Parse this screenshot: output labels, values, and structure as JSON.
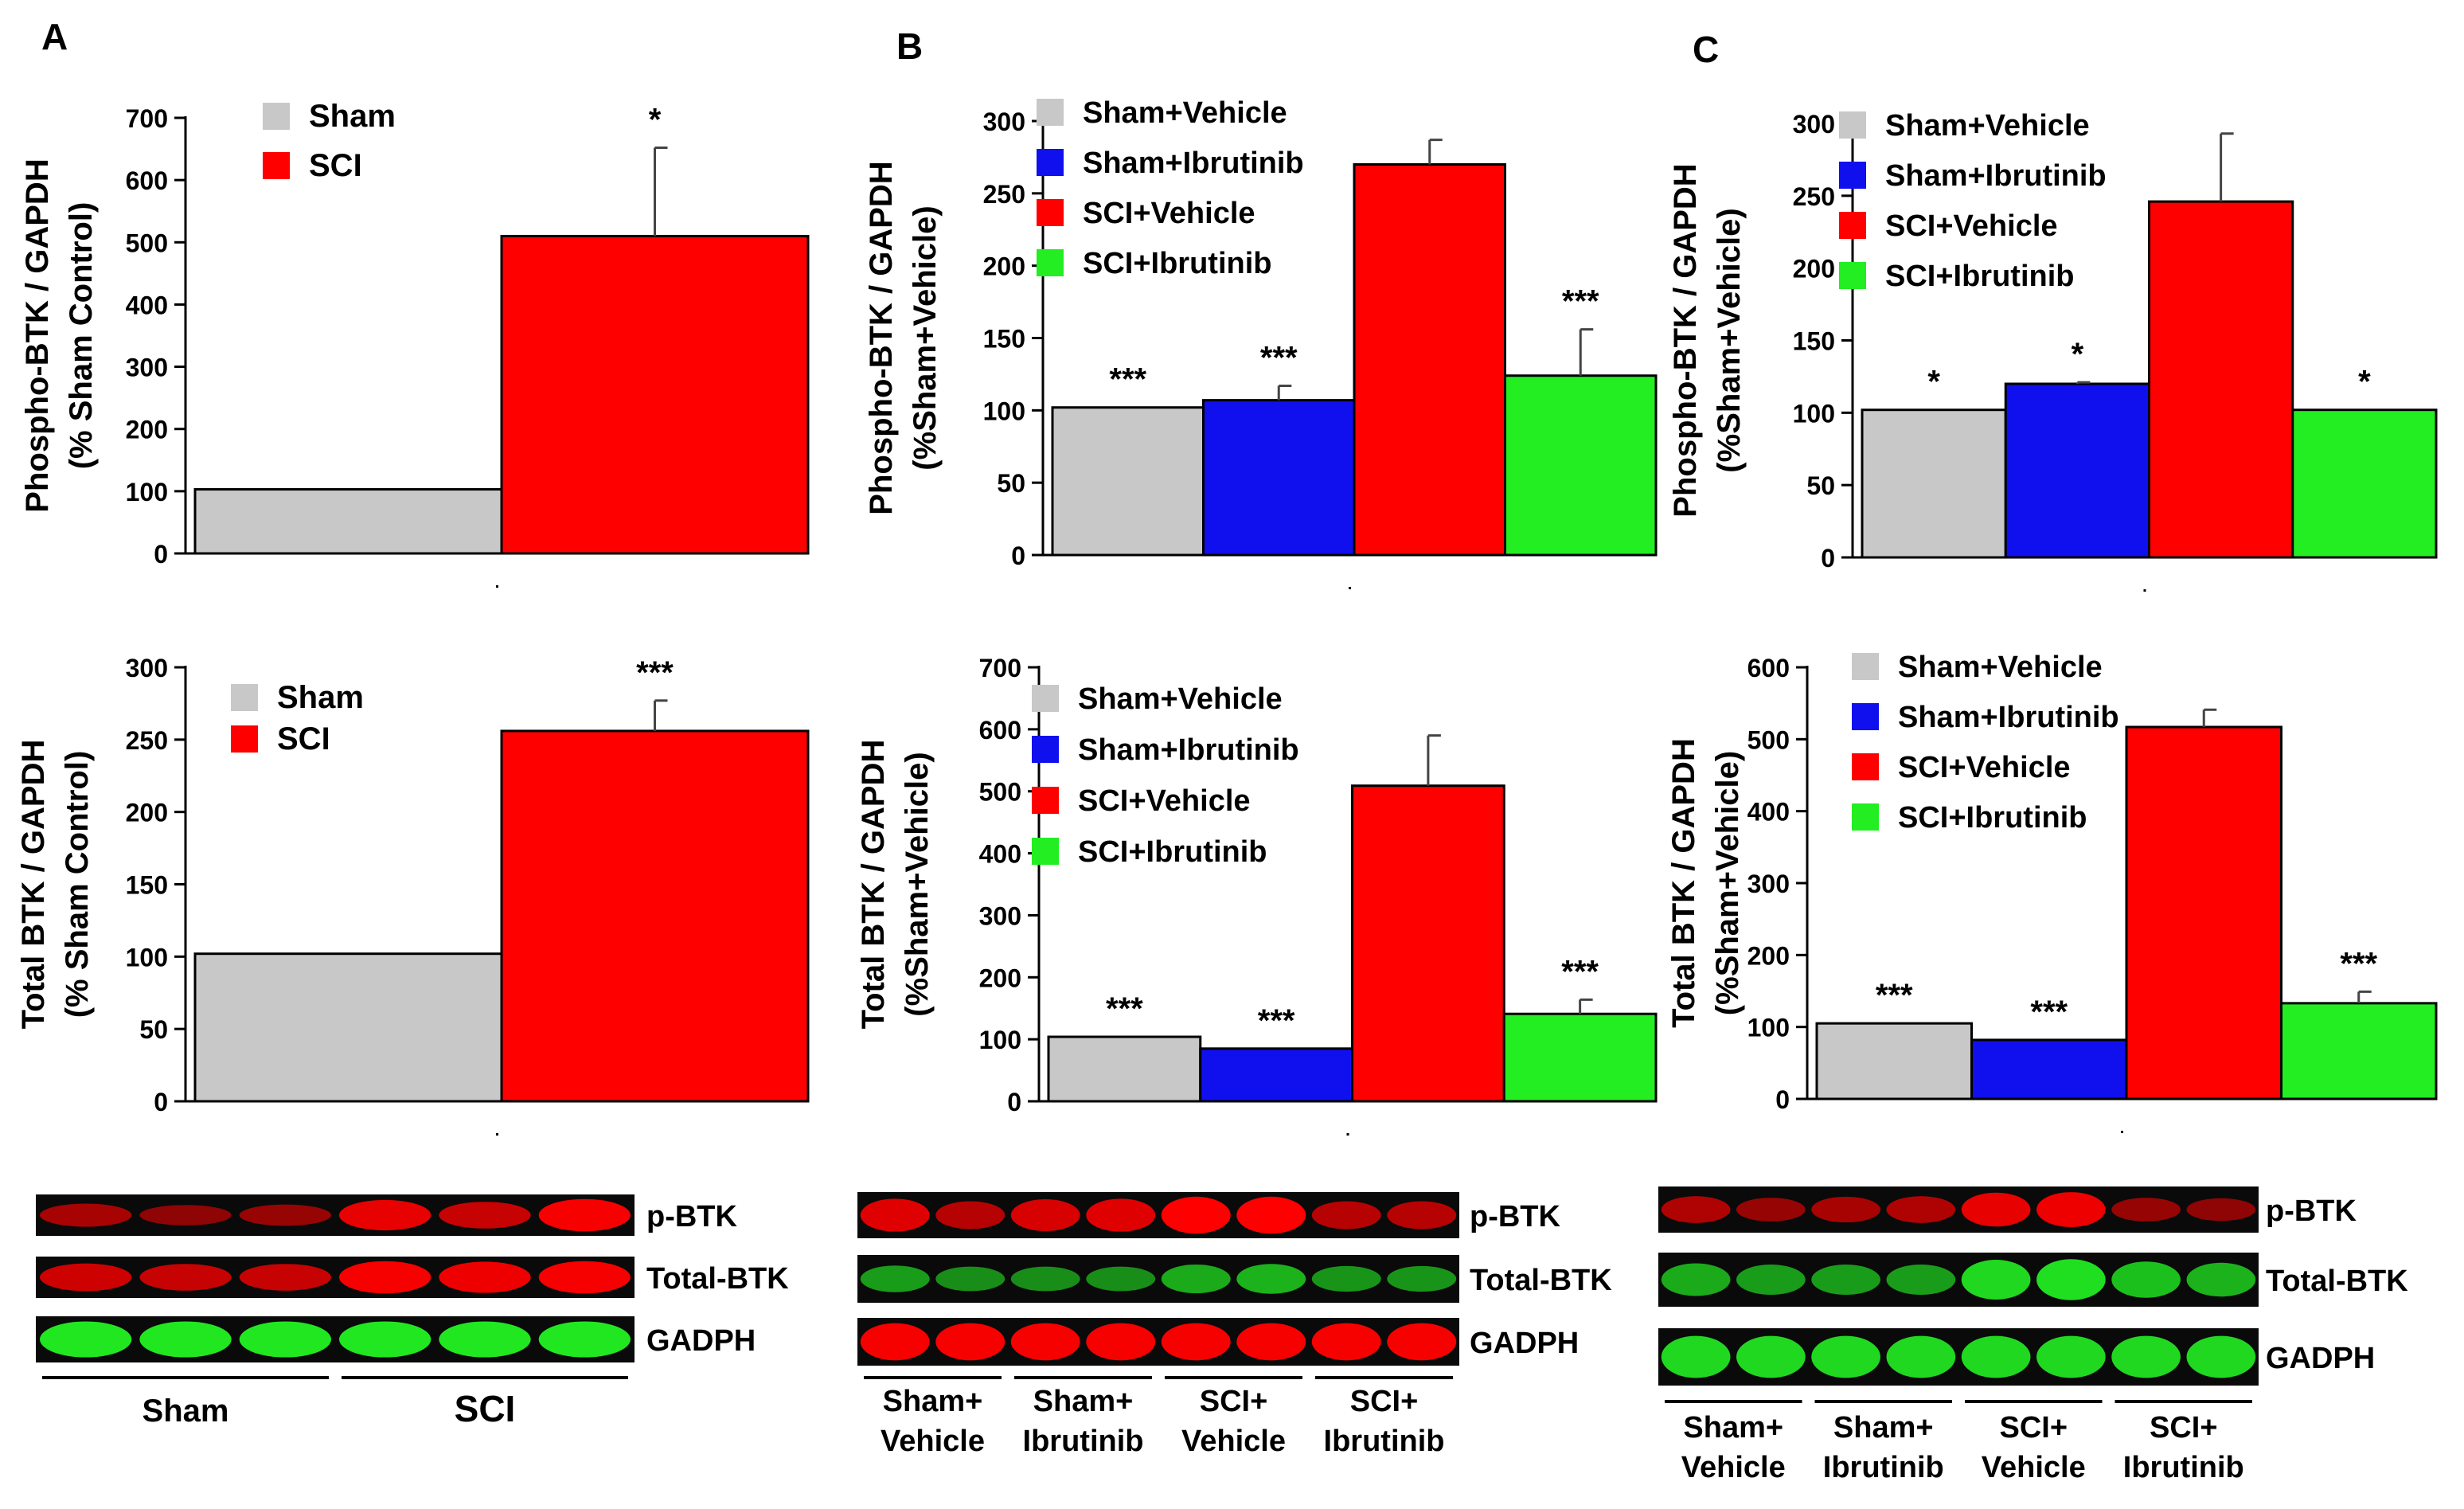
{
  "colors": {
    "gray": "#c8c8c8",
    "blue": "#1010ee",
    "red": "#ff0000",
    "green": "#22ee22",
    "axis": "#000000",
    "blot_bg": "#0a0a0a"
  },
  "panel_letters": [
    "A",
    "B",
    "C"
  ],
  "chart_data": [
    {
      "id": "A-top",
      "type": "bar",
      "panel": "A",
      "ylabel": [
        "Phospho-BTK / GAPDH",
        "(% Sham Control)"
      ],
      "ylim": [
        0,
        700
      ],
      "ticks": [
        0,
        100,
        200,
        300,
        400,
        500,
        600,
        700
      ],
      "legend": [
        "Sham",
        "SCI"
      ],
      "legend_position": "top-left",
      "values": [
        103,
        510
      ],
      "errors": [
        0,
        142
      ],
      "sig": [
        "",
        "*"
      ],
      "bar_colors": [
        "gray",
        "red"
      ],
      "grid": false
    },
    {
      "id": "A-bottom",
      "type": "bar",
      "panel": "A",
      "ylabel": [
        "Total BTK / GAPDH",
        "(% Sham Control)"
      ],
      "ylim": [
        0,
        300
      ],
      "ticks": [
        0,
        50,
        100,
        150,
        200,
        250,
        300
      ],
      "legend": [
        "Sham",
        "SCI"
      ],
      "legend_position": "top-left",
      "values": [
        102,
        256
      ],
      "errors": [
        0,
        21
      ],
      "sig": [
        "",
        "***"
      ],
      "bar_colors": [
        "gray",
        "red"
      ],
      "grid": false
    },
    {
      "id": "B-top",
      "type": "bar",
      "panel": "B",
      "ylabel": [
        "Phospho-BTK / GAPDH",
        "(%Sham+Vehicle)"
      ],
      "ylim": [
        0,
        300
      ],
      "ticks": [
        0,
        50,
        100,
        150,
        200,
        250,
        300
      ],
      "legend": [
        "Sham+Vehicle",
        "Sham+Ibrutinib",
        "SCI+Vehicle",
        "SCI+Ibrutinib"
      ],
      "legend_position": "top-left",
      "values": [
        102,
        107,
        270,
        124
      ],
      "errors": [
        0,
        10,
        17,
        32
      ],
      "sig": [
        "***",
        "***",
        "",
        "***"
      ],
      "bar_colors": [
        "gray",
        "blue",
        "red",
        "green"
      ],
      "grid": false
    },
    {
      "id": "B-bottom",
      "type": "bar",
      "panel": "B",
      "ylabel": [
        "Total BTK / GAPDH",
        "(%Sham+Vehicle)"
      ],
      "ylim": [
        0,
        700
      ],
      "ticks": [
        0,
        100,
        200,
        300,
        400,
        500,
        600,
        700
      ],
      "legend": [
        "Sham+Vehicle",
        "Sham+Ibrutinib",
        "SCI+Vehicle",
        "SCI+Ibrutinib"
      ],
      "legend_position": "top-left",
      "values": [
        104,
        85,
        509,
        141
      ],
      "errors": [
        0,
        0,
        81,
        23
      ],
      "sig": [
        "***",
        "***",
        "",
        "***"
      ],
      "bar_colors": [
        "gray",
        "blue",
        "red",
        "green"
      ],
      "grid": false
    },
    {
      "id": "C-top",
      "type": "bar",
      "panel": "C",
      "ylabel": [
        "Phospho-BTK / GAPDH",
        "(%Sham+Vehicle)"
      ],
      "ylim": [
        0,
        300
      ],
      "ticks": [
        0,
        50,
        100,
        150,
        200,
        250,
        300
      ],
      "legend": [
        "Sham+Vehicle",
        "Sham+Ibrutinib",
        "SCI+Vehicle",
        "SCI+Ibrutinib"
      ],
      "legend_position": "top-left",
      "values": [
        102,
        120,
        246,
        102
      ],
      "errors": [
        0,
        1,
        47,
        0
      ],
      "sig": [
        "*",
        "*",
        "",
        "*"
      ],
      "bar_colors": [
        "gray",
        "blue",
        "red",
        "green"
      ],
      "grid": false
    },
    {
      "id": "C-bottom",
      "type": "bar",
      "panel": "C",
      "ylabel": [
        "Total BTK / GAPDH",
        "(%Sham+Vehicle)"
      ],
      "ylim": [
        0,
        600
      ],
      "ticks": [
        0,
        100,
        200,
        300,
        400,
        500,
        600
      ],
      "legend": [
        "Sham+Vehicle",
        "Sham+Ibrutinib",
        "SCI+Vehicle",
        "SCI+Ibrutinib"
      ],
      "legend_position": "top-left",
      "values": [
        105,
        82,
        517,
        133
      ],
      "errors": [
        0,
        0,
        24,
        16
      ],
      "sig": [
        "***",
        "***",
        "",
        "***"
      ],
      "bar_colors": [
        "gray",
        "blue",
        "red",
        "green"
      ],
      "grid": false
    }
  ],
  "blots": [
    {
      "id": "A",
      "lanes": 6,
      "rows": [
        {
          "label": "p-BTK",
          "color": "red",
          "intensities": [
            0.45,
            0.3,
            0.35,
            0.85,
            0.65,
            0.95
          ]
        },
        {
          "label": "Total-BTK",
          "color": "red",
          "intensities": [
            0.7,
            0.65,
            0.65,
            0.95,
            0.9,
            0.95
          ]
        },
        {
          "label": "GADPH",
          "color": "green",
          "intensities": [
            0.95,
            0.95,
            0.95,
            0.95,
            0.95,
            0.95
          ]
        }
      ],
      "groups": [
        {
          "label": "Sham",
          "lanes": [
            0,
            2
          ]
        },
        {
          "label": "SCI",
          "lanes": [
            3,
            5
          ]
        }
      ]
    },
    {
      "id": "B",
      "lanes": 8,
      "rows": [
        {
          "label": "p-BTK",
          "color": "red",
          "intensities": [
            0.8,
            0.55,
            0.75,
            0.8,
            1.0,
            1.0,
            0.55,
            0.55
          ]
        },
        {
          "label": "Total-BTK",
          "color": "green",
          "intensities": [
            0.45,
            0.35,
            0.35,
            0.35,
            0.55,
            0.6,
            0.4,
            0.4
          ]
        },
        {
          "label": "GADPH",
          "color": "red",
          "intensities": [
            0.95,
            0.95,
            0.95,
            0.95,
            0.95,
            0.95,
            0.95,
            0.95
          ]
        }
      ],
      "groups": [
        {
          "label": [
            "Sham+",
            "Vehicle"
          ],
          "lanes": [
            0,
            1
          ]
        },
        {
          "label": [
            "Sham+",
            "Ibrutinib"
          ],
          "lanes": [
            2,
            3
          ]
        },
        {
          "label": [
            "SCI+",
            "Vehicle"
          ],
          "lanes": [
            4,
            5
          ]
        },
        {
          "label": [
            "SCI+",
            "Ibrutinib"
          ],
          "lanes": [
            6,
            7
          ]
        }
      ]
    },
    {
      "id": "C",
      "lanes": 8,
      "rows": [
        {
          "label": "p-BTK",
          "color": "red",
          "intensities": [
            0.5,
            0.35,
            0.45,
            0.5,
            0.85,
            0.9,
            0.35,
            0.3
          ]
        },
        {
          "label": "Total-BTK",
          "color": "green",
          "intensities": [
            0.55,
            0.45,
            0.45,
            0.45,
            0.85,
            0.9,
            0.7,
            0.6
          ]
        },
        {
          "label": "GADPH",
          "color": "green",
          "intensities": [
            0.85,
            0.85,
            0.85,
            0.85,
            0.85,
            0.85,
            0.85,
            0.85
          ]
        }
      ],
      "groups": [
        {
          "label": [
            "Sham+",
            "Vehicle"
          ],
          "lanes": [
            0,
            1
          ]
        },
        {
          "label": [
            "Sham+",
            "Ibrutinib"
          ],
          "lanes": [
            2,
            3
          ]
        },
        {
          "label": [
            "SCI+",
            "Vehicle"
          ],
          "lanes": [
            4,
            5
          ]
        },
        {
          "label": [
            "SCI+",
            "Ibrutinib"
          ],
          "lanes": [
            6,
            7
          ]
        }
      ]
    }
  ]
}
